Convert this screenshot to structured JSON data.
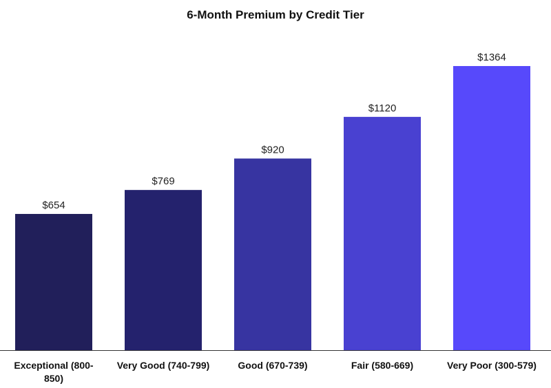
{
  "chart_data": {
    "type": "bar",
    "title": "6-Month Premium by Credit Tier",
    "xlabel": "",
    "ylabel": "",
    "value_prefix": "$",
    "categories": [
      [
        "Exceptional (800-",
        "850)"
      ],
      [
        "Very Good (740-799)"
      ],
      [
        "Good (670-739)"
      ],
      [
        "Fair (580-669)"
      ],
      [
        "Very Poor (300-579)"
      ]
    ],
    "values": [
      654,
      769,
      920,
      1120,
      1364
    ],
    "colors": [
      "#211f5a",
      "#24226d",
      "#3734a1",
      "#4941d1",
      "#5749fb"
    ],
    "ylim": [
      0,
      1364
    ],
    "grid": false,
    "legend": "none"
  }
}
